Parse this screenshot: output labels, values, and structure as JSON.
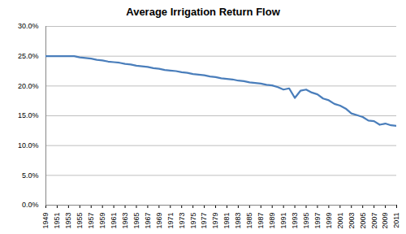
{
  "chart_data": {
    "type": "line",
    "title": "Average Irrigation Return Flow",
    "x": [
      1949,
      1950,
      1951,
      1952,
      1953,
      1954,
      1955,
      1956,
      1957,
      1958,
      1959,
      1960,
      1961,
      1962,
      1963,
      1964,
      1965,
      1966,
      1967,
      1968,
      1969,
      1970,
      1971,
      1972,
      1973,
      1974,
      1975,
      1976,
      1977,
      1978,
      1979,
      1980,
      1981,
      1982,
      1983,
      1984,
      1985,
      1986,
      1987,
      1988,
      1989,
      1990,
      1991,
      1992,
      1993,
      1994,
      1995,
      1996,
      1997,
      1998,
      1999,
      2000,
      2001,
      2002,
      2003,
      2004,
      2005,
      2006,
      2007,
      2008,
      2009,
      2010,
      2011
    ],
    "values": [
      25.0,
      25.0,
      25.0,
      25.0,
      25.0,
      25.0,
      24.8,
      24.7,
      24.6,
      24.4,
      24.3,
      24.1,
      24.0,
      23.9,
      23.7,
      23.6,
      23.4,
      23.3,
      23.2,
      23.0,
      22.9,
      22.7,
      22.6,
      22.5,
      22.3,
      22.2,
      22.0,
      21.9,
      21.8,
      21.6,
      21.5,
      21.3,
      21.2,
      21.1,
      20.9,
      20.8,
      20.6,
      20.5,
      20.4,
      20.2,
      20.1,
      19.8,
      19.4,
      19.6,
      18.0,
      19.2,
      19.4,
      18.9,
      18.6,
      17.9,
      17.6,
      17.0,
      16.7,
      16.2,
      15.4,
      15.1,
      14.8,
      14.2,
      14.1,
      13.5,
      13.7,
      13.4,
      13.3
    ],
    "color": "#4a7ebb",
    "xlim": [
      1949,
      2011
    ],
    "xticks": [
      1949,
      1951,
      1953,
      1955,
      1957,
      1959,
      1961,
      1963,
      1965,
      1967,
      1969,
      1971,
      1973,
      1975,
      1977,
      1979,
      1981,
      1983,
      1985,
      1987,
      1989,
      1991,
      1993,
      1995,
      1997,
      1999,
      2001,
      2003,
      2005,
      2007,
      2009,
      2011
    ],
    "ylim": [
      0,
      30
    ],
    "yticks": [
      {
        "value": 0,
        "label": "0.0%"
      },
      {
        "value": 5,
        "label": "5.0%"
      },
      {
        "value": 10,
        "label": "10.0%"
      },
      {
        "value": 15,
        "label": "15.0%"
      },
      {
        "value": 20,
        "label": "20.0%"
      },
      {
        "value": 25,
        "label": "25.0%"
      },
      {
        "value": 30,
        "label": "30.0%"
      }
    ],
    "grid": true
  }
}
